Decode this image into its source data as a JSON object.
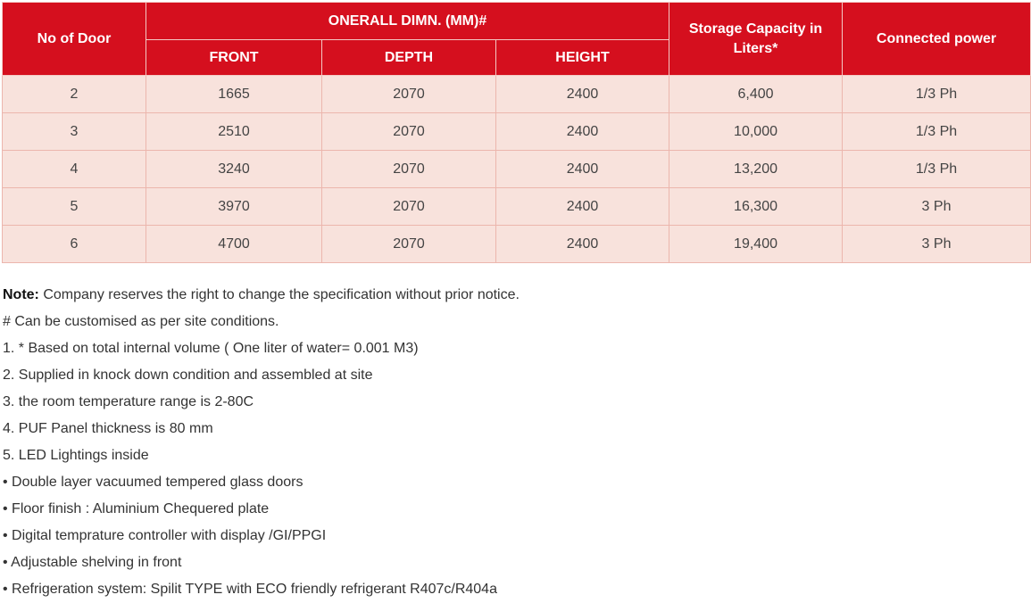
{
  "table": {
    "headers": {
      "doors": "No of Door",
      "overall_dimn": "ONERALL DIMN. (MM)#",
      "storage": "Storage Capacity in Liters*",
      "power": "Connected power",
      "front": "FRONT",
      "depth": "DEPTH",
      "height": "HEIGHT"
    },
    "rows": [
      {
        "doors": "2",
        "front": "1665",
        "depth": "2070",
        "height": "2400",
        "storage": "6,400",
        "power": "1/3 Ph"
      },
      {
        "doors": "3",
        "front": "2510",
        "depth": "2070",
        "height": "2400",
        "storage": "10,000",
        "power": "1/3 Ph"
      },
      {
        "doors": "4",
        "front": "3240",
        "depth": "2070",
        "height": "2400",
        "storage": "13,200",
        "power": "1/3 Ph"
      },
      {
        "doors": "5",
        "front": "3970",
        "depth": "2070",
        "height": "2400",
        "storage": "16,300",
        "power": "3 Ph"
      },
      {
        "doors": "6",
        "front": "4700",
        "depth": "2070",
        "height": "2400",
        "storage": "19,400",
        "power": "3 Ph"
      }
    ]
  },
  "notes": {
    "note_label": "Note:",
    "note_text": " Company reserves the right to change the specification without  prior notice.",
    "lines": [
      "# Can be customised as per site conditions.",
      "1. * Based on total internal volume ( One liter of water= 0.001 M3)",
      "2. Supplied in knock down condition and assembled at site",
      "3. the room temperature range is 2-80C",
      "4. PUF Panel thickness is 80 mm",
      "5. LED Lightings inside",
      "• Double layer vacuumed tempered glass doors",
      "• Floor finish : Aluminium Chequered plate",
      "• Digital temprature controller with display /GI/PPGI",
      "• Adjustable shelving in front",
      "• Refrigeration system: Spilit TYPE with ECO friendly refrigerant R407c/R404a"
    ]
  }
}
